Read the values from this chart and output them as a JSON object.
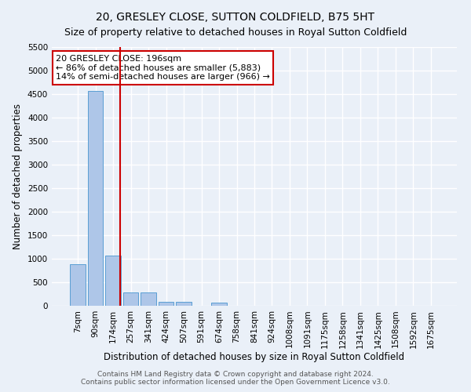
{
  "title": "20, GRESLEY CLOSE, SUTTON COLDFIELD, B75 5HT",
  "subtitle": "Size of property relative to detached houses in Royal Sutton Coldfield",
  "xlabel": "Distribution of detached houses by size in Royal Sutton Coldfield",
  "ylabel": "Number of detached properties",
  "footer_line1": "Contains HM Land Registry data © Crown copyright and database right 2024.",
  "footer_line2": "Contains public sector information licensed under the Open Government Licence v3.0.",
  "annotation_line1": "20 GRESLEY CLOSE: 196sqm",
  "annotation_line2": "← 86% of detached houses are smaller (5,883)",
  "annotation_line3": "14% of semi-detached houses are larger (966) →",
  "categories": [
    "7sqm",
    "90sqm",
    "174sqm",
    "257sqm",
    "341sqm",
    "424sqm",
    "507sqm",
    "591sqm",
    "674sqm",
    "758sqm",
    "841sqm",
    "924sqm",
    "1008sqm",
    "1091sqm",
    "1175sqm",
    "1258sqm",
    "1341sqm",
    "1425sqm",
    "1508sqm",
    "1592sqm",
    "1675sqm"
  ],
  "values": [
    880,
    4560,
    1060,
    285,
    285,
    90,
    80,
    0,
    60,
    0,
    0,
    0,
    0,
    0,
    0,
    0,
    0,
    0,
    0,
    0,
    0
  ],
  "bar_color": "#aec6e8",
  "bar_edge_color": "#5a9fd4",
  "vline_x_index": 2,
  "vline_color": "#cc0000",
  "ylim": [
    0,
    5500
  ],
  "yticks": [
    0,
    500,
    1000,
    1500,
    2000,
    2500,
    3000,
    3500,
    4000,
    4500,
    5000,
    5500
  ],
  "background_color": "#eaf0f8",
  "grid_color": "#ffffff",
  "annotation_box_color": "#ffffff",
  "annotation_box_edge": "#cc0000",
  "title_fontsize": 10,
  "subtitle_fontsize": 9,
  "axis_label_fontsize": 8.5,
  "tick_fontsize": 7.5,
  "annotation_fontsize": 8,
  "footer_fontsize": 6.5
}
